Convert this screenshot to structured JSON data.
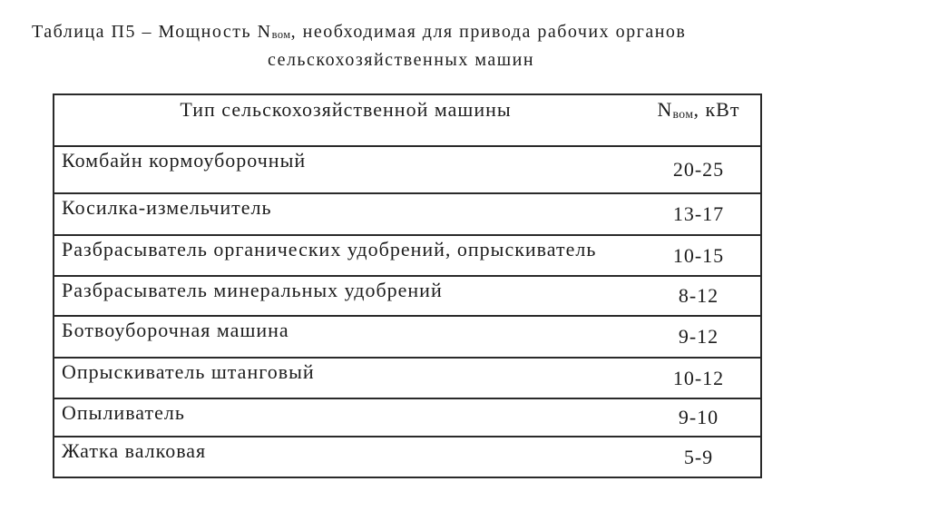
{
  "colors": {
    "background": "#ffffff",
    "text": "#1d1d1d",
    "border_heavy": "#2a2a2a",
    "border_light": "#555555"
  },
  "caption": {
    "line1_prefix": "Таблица П5 – Мощность N",
    "line1_sub": "вом",
    "line1_suffix": ", необходимая для привода рабочих органов",
    "line2": "сельскохозяйственных машин"
  },
  "table": {
    "columns": [
      {
        "label": "Тип сельскохозяйственной машины"
      },
      {
        "label_prefix": "N",
        "label_sub": "вом",
        "label_suffix": ", кВт"
      }
    ],
    "rows": [
      {
        "type": "Комбайн кормоуборочный",
        "power": "20-25"
      },
      {
        "type": "Косилка-измельчитель",
        "power": "13-17"
      },
      {
        "type": "Разбрасыватель органических удобрений, опрыскиватель",
        "power": "10-15"
      },
      {
        "type": "Разбрасыватель минеральных удобрений",
        "power": "8-12"
      },
      {
        "type": "Ботвоуборочная машина",
        "power": "9-12"
      },
      {
        "type": "Опрыскиватель штанговый",
        "power": "10-12"
      },
      {
        "type": "Опыливатель",
        "power": "9-10"
      },
      {
        "type": "Жатка валковая",
        "power": "5-9"
      }
    ]
  }
}
